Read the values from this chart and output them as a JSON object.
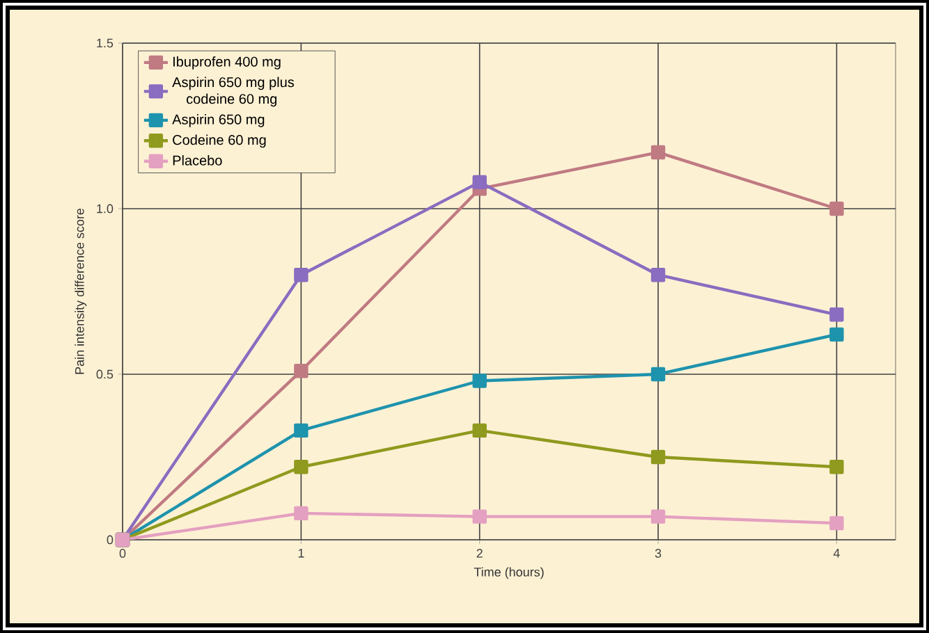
{
  "chart_data": {
    "type": "line",
    "xlabel": "Time (hours)",
    "ylabel": "Pain intensity difference score",
    "x": [
      0,
      1,
      2,
      3,
      4
    ],
    "xlim": [
      0,
      4.33
    ],
    "xticks": [
      0,
      1,
      2,
      3,
      4
    ],
    "ylim": [
      0,
      1.5
    ],
    "yticks": [
      0,
      0.5,
      {
        "value": 1,
        "label": "1.0"
      },
      1.5
    ],
    "grid": true,
    "legend": "top left",
    "marker": "square",
    "line_style": "solid",
    "series": [
      {
        "name": "Ibuprofen 400 mg",
        "color": "#c07a82",
        "values": [
          0,
          0.51,
          1.06,
          1.17,
          1.0
        ]
      },
      {
        "name": "Aspirin 650 mg plus codeine 60 mg",
        "color": "#8a6cc0",
        "values": [
          0,
          0.8,
          1.08,
          0.8,
          0.68
        ]
      },
      {
        "name": "Aspirin 650 mg",
        "color": "#1e93ad",
        "values": [
          0,
          0.33,
          0.48,
          0.5,
          0.62
        ]
      },
      {
        "name": "Codeine 60 mg",
        "color": "#8f9a1e",
        "values": [
          0,
          0.22,
          0.33,
          0.25,
          0.22
        ]
      },
      {
        "name": "Placebo",
        "color": "#e4a0c0",
        "values": [
          0,
          0.08,
          0.07,
          0.07,
          0.05
        ]
      }
    ]
  }
}
